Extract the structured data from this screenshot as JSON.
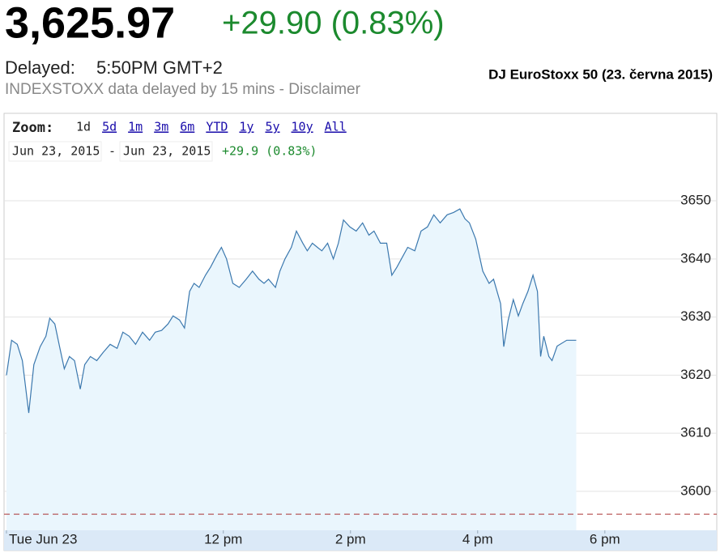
{
  "header": {
    "price": "3,625.97",
    "change": "+29.90 (0.83%)",
    "delayed_label": "Delayed:",
    "delayed_time": "5:50PM GMT+2",
    "disclaimer": "INDEXSTOXX data delayed by 15 mins - Disclaimer",
    "caption": "DJ EuroStoxx 50 (23. června 2015)"
  },
  "controls": {
    "zoom_label": "Zoom:",
    "zoom_options": [
      "1d",
      "5d",
      "1m",
      "3m",
      "6m",
      "YTD",
      "1y",
      "5y",
      "10y",
      "All"
    ],
    "range_from": "Jun 23, 2015",
    "range_separator": "-",
    "range_to": "Jun 23, 2015",
    "range_change": "+29.9 (0.83%)"
  },
  "chart_data": {
    "type": "line",
    "color": "#3b78ae",
    "fill": "#eaf6fd",
    "x": [
      8.59,
      8.67,
      8.76,
      8.84,
      8.94,
      9.02,
      9.12,
      9.21,
      9.27,
      9.35,
      9.43,
      9.5,
      9.58,
      9.66,
      9.75,
      9.82,
      9.91,
      10.01,
      10.11,
      10.22,
      10.33,
      10.42,
      10.52,
      10.62,
      10.73,
      10.84,
      10.93,
      11.03,
      11.13,
      11.21,
      11.31,
      11.39,
      11.47,
      11.54,
      11.62,
      11.72,
      11.8,
      11.9,
      11.97,
      12.05,
      12.15,
      12.25,
      12.36,
      12.46,
      12.56,
      12.64,
      12.71,
      12.82,
      12.89,
      12.97,
      13.07,
      13.15,
      13.25,
      13.32,
      13.4,
      13.48,
      13.55,
      13.64,
      13.73,
      13.81,
      13.89,
      13.99,
      14.09,
      14.19,
      14.29,
      14.37,
      14.47,
      14.57,
      14.65,
      14.73,
      14.8,
      14.9,
      15.01,
      15.11,
      15.21,
      15.31,
      15.41,
      15.52,
      15.62,
      15.72,
      15.8,
      15.87,
      15.97,
      16.08,
      16.18,
      16.25,
      16.36,
      16.41,
      16.48,
      16.56,
      16.64,
      16.71,
      16.79,
      16.87,
      16.94,
      16.99,
      17.04,
      17.12,
      17.17,
      17.25,
      17.4,
      17.55
    ],
    "values": [
      3620.0,
      3626.0,
      3625.3,
      3622.5,
      3613.5,
      3621.8,
      3624.9,
      3626.7,
      3629.8,
      3628.8,
      3624.6,
      3621.1,
      3623.2,
      3622.5,
      3617.6,
      3621.8,
      3623.2,
      3622.5,
      3623.9,
      3625.3,
      3624.6,
      3627.4,
      3626.7,
      3625.3,
      3627.4,
      3626.0,
      3627.4,
      3627.7,
      3628.8,
      3630.2,
      3629.5,
      3628.1,
      3634.4,
      3635.8,
      3635.1,
      3637.2,
      3638.6,
      3640.7,
      3642.0,
      3640.0,
      3635.8,
      3635.1,
      3636.5,
      3637.9,
      3636.5,
      3635.8,
      3636.5,
      3635.1,
      3637.9,
      3640.0,
      3642.0,
      3644.8,
      3642.7,
      3641.4,
      3642.7,
      3642.0,
      3641.4,
      3642.7,
      3640.0,
      3642.7,
      3646.7,
      3645.5,
      3644.8,
      3646.2,
      3644.1,
      3644.8,
      3642.7,
      3642.7,
      3637.2,
      3638.6,
      3640.0,
      3642.0,
      3641.4,
      3644.8,
      3645.5,
      3647.6,
      3646.2,
      3647.6,
      3648.0,
      3648.6,
      3646.9,
      3646.2,
      3643.4,
      3637.9,
      3635.8,
      3636.5,
      3632.3,
      3624.9,
      3629.5,
      3633.0,
      3630.2,
      3632.3,
      3634.4,
      3637.2,
      3634.4,
      3623.2,
      3626.7,
      3623.2,
      3622.5,
      3625.0,
      3626.0,
      3626.0
    ],
    "previous_close": 3596.07,
    "xlim": [
      8.59,
      19.76
    ],
    "xticks": [
      {
        "value": 8.59,
        "label": "Tue Jun 23"
      },
      {
        "value": 12,
        "label": "12 pm"
      },
      {
        "value": 14,
        "label": "2 pm"
      },
      {
        "value": 16,
        "label": "4 pm"
      },
      {
        "value": 18,
        "label": "6 pm"
      }
    ],
    "ylim": [
      3593.3,
      3655.3
    ],
    "yticks": [
      3600,
      3610,
      3620,
      3630,
      3640,
      3650
    ],
    "grid": true
  }
}
